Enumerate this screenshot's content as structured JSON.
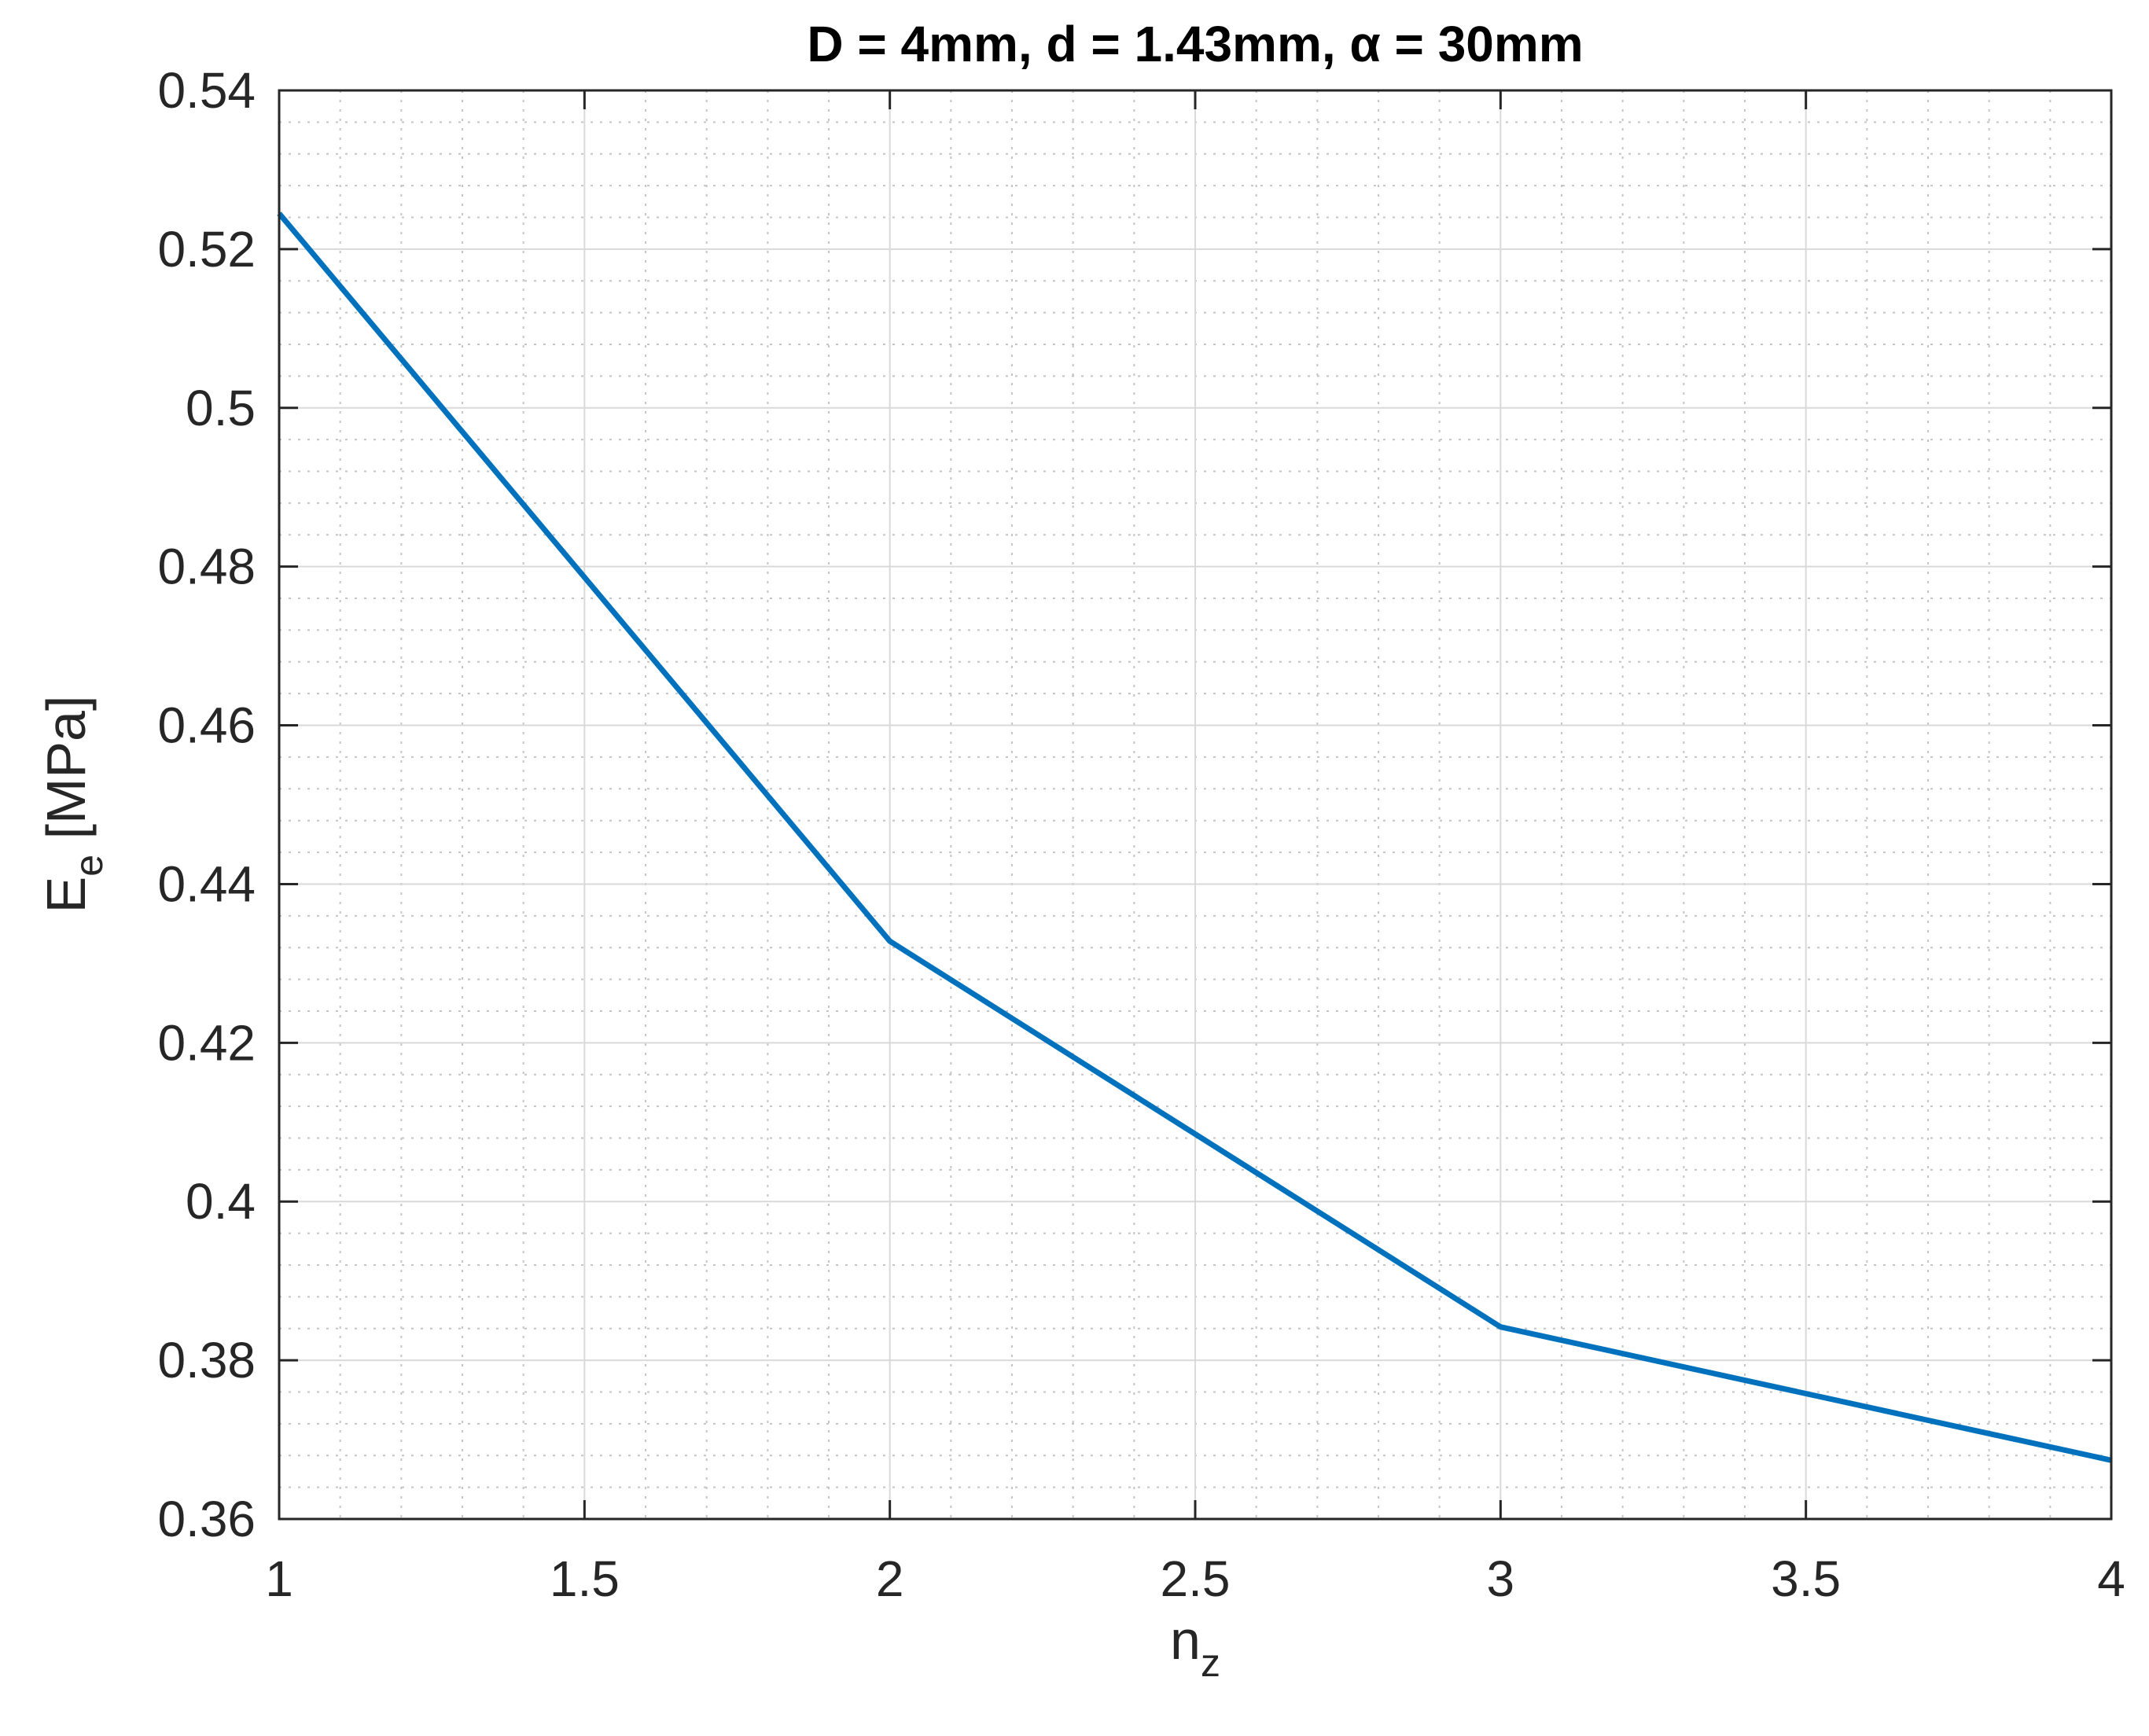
{
  "chart_data": {
    "type": "line",
    "title": "D = 4mm, d = 1.43mm, α = 30mm",
    "xlabel": {
      "main": "n",
      "sub": "z"
    },
    "ylabel": {
      "main": "E",
      "sub": "e",
      "suffix": " [MPa]"
    },
    "xlim": [
      1,
      4
    ],
    "ylim": [
      0.36,
      0.54
    ],
    "x_ticks": [
      1,
      1.5,
      2,
      2.5,
      3,
      3.5,
      4
    ],
    "x_tick_labels": [
      "1",
      "1.5",
      "2",
      "2.5",
      "3",
      "3.5",
      "4"
    ],
    "y_ticks": [
      0.36,
      0.38,
      0.4,
      0.42,
      0.44,
      0.46,
      0.48,
      0.5,
      0.52,
      0.54
    ],
    "y_tick_labels": [
      "0.36",
      "0.38",
      "0.4",
      "0.42",
      "0.44",
      "0.46",
      "0.48",
      "0.5",
      "0.52",
      "0.54"
    ],
    "x_minor_step": 0.1,
    "y_minor_step": 0.004,
    "grid": true,
    "minor_grid": true,
    "series": [
      {
        "x": [
          1,
          2,
          3,
          4
        ],
        "y": [
          0.5245,
          0.4328,
          0.3842,
          0.3674
        ],
        "color": "#0072BD"
      }
    ]
  }
}
